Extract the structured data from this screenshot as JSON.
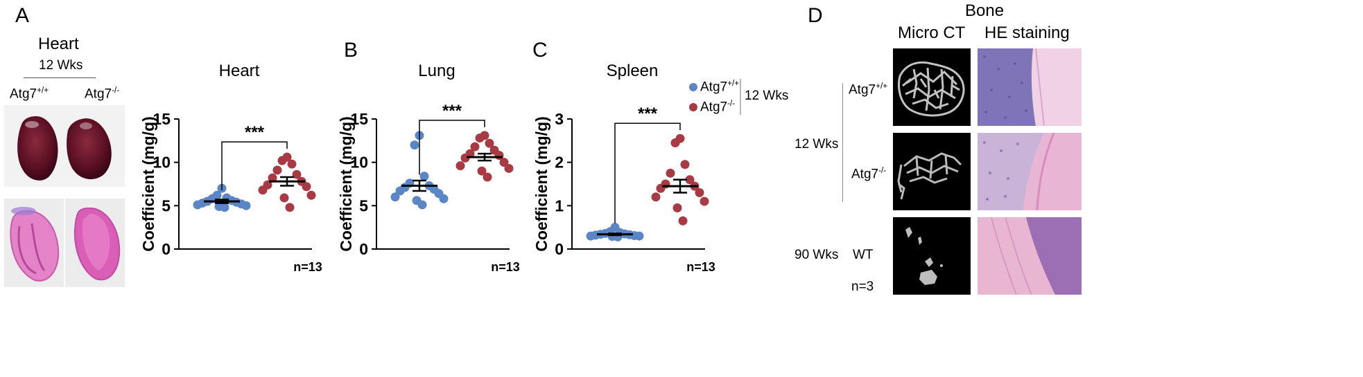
{
  "panels": {
    "A": {
      "letter": "A",
      "photo_title": "Heart",
      "photo_subtitle": "12 Wks",
      "genotype_wt": "Atg7",
      "genotype_wt_sup": "+/+",
      "genotype_ko": "Atg7",
      "genotype_ko_sup": "-/-"
    },
    "B": {
      "letter": "B"
    },
    "C": {
      "letter": "C"
    },
    "D": {
      "letter": "D",
      "title": "Bone",
      "col1": "Micro CT",
      "col2": "HE staining",
      "row_wt": "Atg7",
      "row_wt_sup": "+/+",
      "row_ko": "Atg7",
      "row_ko_sup": "-/-",
      "group_12": "12 Wks",
      "group_90": "90 Wks",
      "row_old": "WT",
      "n": "n=3"
    }
  },
  "legend": {
    "items": [
      {
        "label": "Atg7",
        "sup": "+/+",
        "color": "#5b86c6"
      },
      {
        "label": "Atg7",
        "sup": "-/-",
        "color": "#a83a44"
      }
    ],
    "group": "12 Wks"
  },
  "chart_data": [
    {
      "type": "scatter",
      "title": "Heart",
      "ylabel": "Coefficient (mg/g)",
      "ylim": [
        0,
        15
      ],
      "yticks": [
        0,
        5,
        10,
        15
      ],
      "significance": "***",
      "n_label": "n=13",
      "series": [
        {
          "sup": "+/+",
          "color": "#5b86c6",
          "values": [
            7.0,
            6.2,
            5.9,
            5.8,
            5.6,
            5.5,
            5.4,
            5.3,
            5.2,
            5.1,
            5.0,
            4.9,
            4.8
          ],
          "mean": 5.5,
          "sem": 0.2
        },
        {
          "sup": "-/-",
          "color": "#a83a44",
          "values": [
            10.6,
            10.2,
            9.8,
            9.1,
            8.6,
            8.2,
            7.8,
            7.4,
            7.2,
            6.8,
            6.2,
            5.9,
            4.8
          ],
          "mean": 7.8,
          "sem": 0.5
        }
      ]
    },
    {
      "type": "scatter",
      "title": "Lung",
      "ylabel": "Coefficient (mg/g)",
      "ylim": [
        0,
        15
      ],
      "yticks": [
        0,
        5,
        10,
        15
      ],
      "significance": "***",
      "n_label": "n=13",
      "series": [
        {
          "sup": "+/+",
          "color": "#5b86c6",
          "values": [
            13.1,
            12.0,
            8.4,
            7.6,
            7.3,
            7.1,
            6.9,
            6.7,
            6.4,
            6.0,
            5.8,
            5.6,
            5.1
          ],
          "mean": 7.3,
          "sem": 0.6
        },
        {
          "sup": "-/-",
          "color": "#a83a44",
          "values": [
            13.1,
            12.8,
            12.2,
            11.8,
            11.4,
            11.0,
            10.8,
            10.5,
            10.0,
            9.6,
            9.3,
            9.0,
            8.3
          ],
          "mean": 10.6,
          "sem": 0.4
        }
      ]
    },
    {
      "type": "scatter",
      "title": "Spleen",
      "ylabel": "Coefficient (mg/g)",
      "ylim": [
        0,
        3
      ],
      "yticks": [
        0,
        1,
        2,
        3
      ],
      "significance": "***",
      "n_label": "n=13",
      "series": [
        {
          "sup": "+/+",
          "color": "#5b86c6",
          "values": [
            0.5,
            0.4,
            0.38,
            0.36,
            0.35,
            0.34,
            0.33,
            0.32,
            0.31,
            0.3,
            0.3,
            0.29,
            0.28
          ],
          "mean": 0.34,
          "sem": 0.02
        },
        {
          "sup": "-/-",
          "color": "#a83a44",
          "values": [
            2.55,
            2.45,
            1.95,
            1.75,
            1.6,
            1.5,
            1.45,
            1.4,
            1.3,
            1.2,
            1.1,
            0.95,
            0.65
          ],
          "mean": 1.45,
          "sem": 0.15
        }
      ]
    }
  ]
}
